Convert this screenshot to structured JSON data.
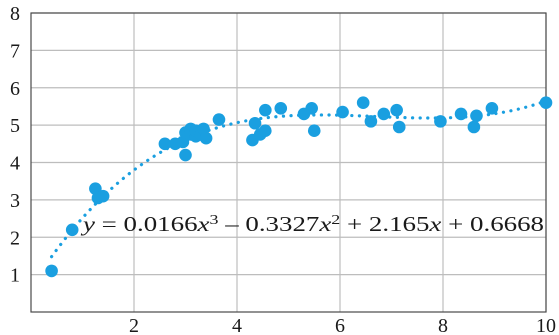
{
  "colors": {
    "marker": "#1a9fe0",
    "grid": "#bdbdbd",
    "text": "#1a1a1a"
  },
  "chart_data": {
    "type": "scatter",
    "title": "",
    "xlabel": "",
    "ylabel": "",
    "xlim": [
      0,
      10
    ],
    "ylim": [
      0,
      8
    ],
    "xticks": [
      2,
      4,
      6,
      8,
      10
    ],
    "yticks": [
      1,
      2,
      3,
      4,
      5,
      6,
      7,
      8
    ],
    "x_tick_labels": [
      "2",
      "4",
      "6",
      "8",
      "10"
    ],
    "y_tick_labels": [
      "1",
      "2",
      "3",
      "4",
      "5",
      "6",
      "7",
      "8"
    ],
    "grid": true,
    "legend": "none",
    "trendline": {
      "kind": "polynomial",
      "degree": 3,
      "coefficients": [
        0.0166,
        -0.3327,
        2.165,
        0.6668
      ],
      "x_range": [
        0.4,
        10
      ],
      "equation_parts": [
        {
          "t": "y",
          "style": "italic"
        },
        {
          "t": " = 0.0166",
          "style": "normal"
        },
        {
          "t": "x",
          "style": "italic"
        },
        {
          "t": "3",
          "style": "sup"
        },
        {
          "t": " – 0.3327",
          "style": "normal"
        },
        {
          "t": "x",
          "style": "italic"
        },
        {
          "t": "2",
          "style": "sup"
        },
        {
          "t": " + 2.165",
          "style": "normal"
        },
        {
          "t": "x",
          "style": "italic"
        },
        {
          "t": " + 0.6668",
          "style": "normal"
        }
      ]
    },
    "series": [
      {
        "points": [
          [
            0.4,
            1.1
          ],
          [
            0.8,
            2.2
          ],
          [
            1.25,
            3.3
          ],
          [
            1.3,
            3.05
          ],
          [
            1.4,
            3.1
          ],
          [
            2.6,
            4.5
          ],
          [
            2.8,
            4.5
          ],
          [
            2.95,
            4.55
          ],
          [
            3.0,
            4.2
          ],
          [
            3.0,
            4.8
          ],
          [
            3.1,
            4.75
          ],
          [
            3.1,
            4.9
          ],
          [
            3.2,
            4.7
          ],
          [
            3.2,
            4.85
          ],
          [
            3.3,
            4.75
          ],
          [
            3.35,
            4.9
          ],
          [
            3.4,
            4.65
          ],
          [
            3.65,
            5.15
          ],
          [
            4.3,
            4.6
          ],
          [
            4.35,
            5.05
          ],
          [
            4.45,
            4.75
          ],
          [
            4.55,
            4.85
          ],
          [
            4.55,
            5.4
          ],
          [
            4.85,
            5.45
          ],
          [
            5.3,
            5.3
          ],
          [
            5.45,
            5.45
          ],
          [
            5.5,
            4.85
          ],
          [
            6.05,
            5.35
          ],
          [
            6.45,
            5.6
          ],
          [
            6.6,
            5.1
          ],
          [
            6.85,
            5.3
          ],
          [
            7.1,
            5.4
          ],
          [
            7.15,
            4.95
          ],
          [
            7.95,
            5.1
          ],
          [
            8.35,
            5.3
          ],
          [
            8.6,
            4.95
          ],
          [
            8.65,
            5.25
          ],
          [
            8.95,
            5.45
          ],
          [
            10.0,
            5.6
          ]
        ]
      }
    ]
  }
}
